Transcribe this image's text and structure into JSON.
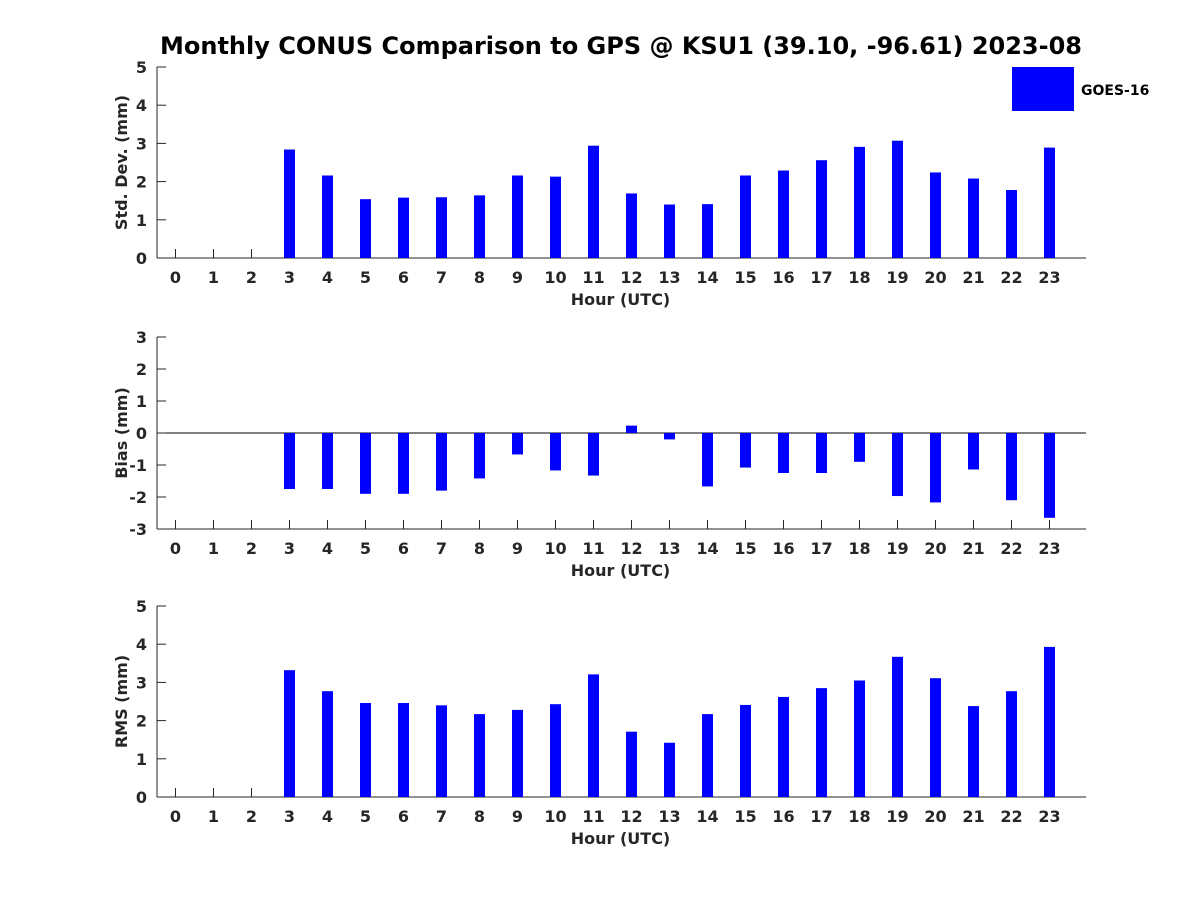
{
  "title": "Monthly CONUS Comparison to GPS @ KSU1 (39.10, -96.61) 2023-08",
  "legend": {
    "label": "GOES-16",
    "color": "#0000ff",
    "position": "top-right"
  },
  "chart_data": [
    {
      "type": "bar",
      "ylabel": "Std. Dev. (mm)",
      "xlabel": "Hour (UTC)",
      "ylim": [
        0,
        5
      ],
      "yticks": [
        "0",
        "1",
        "2",
        "3",
        "4",
        "5"
      ],
      "categories": [
        "0",
        "1",
        "2",
        "3",
        "4",
        "5",
        "6",
        "7",
        "8",
        "9",
        "10",
        "11",
        "12",
        "13",
        "14",
        "15",
        "16",
        "17",
        "18",
        "19",
        "20",
        "21",
        "22",
        "23"
      ],
      "series": [
        {
          "name": "GOES-16",
          "color": "#0000ff",
          "values": [
            null,
            null,
            null,
            2.84,
            2.16,
            1.54,
            1.58,
            1.59,
            1.64,
            2.16,
            2.13,
            2.94,
            1.69,
            1.4,
            1.41,
            2.16,
            2.29,
            2.56,
            2.91,
            3.07,
            2.24,
            2.08,
            1.78,
            2.89
          ]
        }
      ],
      "grid": false
    },
    {
      "type": "bar",
      "ylabel": "Bias (mm)",
      "xlabel": "Hour (UTC)",
      "ylim": [
        -3,
        3
      ],
      "yticks": [
        "-3",
        "-2",
        "-1",
        "0",
        "1",
        "2",
        "3"
      ],
      "categories": [
        "0",
        "1",
        "2",
        "3",
        "4",
        "5",
        "6",
        "7",
        "8",
        "9",
        "10",
        "11",
        "12",
        "13",
        "14",
        "15",
        "16",
        "17",
        "18",
        "19",
        "20",
        "21",
        "22",
        "23"
      ],
      "series": [
        {
          "name": "GOES-16",
          "color": "#0000ff",
          "values": [
            null,
            null,
            null,
            -1.75,
            -1.75,
            -1.9,
            -1.9,
            -1.8,
            -1.42,
            -0.67,
            -1.17,
            -1.33,
            0.23,
            -0.2,
            -1.67,
            -1.08,
            -1.25,
            -1.25,
            -0.9,
            -1.97,
            -2.17,
            -1.14,
            -2.1,
            -2.65
          ]
        }
      ],
      "zero_line": true,
      "grid": false
    },
    {
      "type": "bar",
      "ylabel": "RMS (mm)",
      "xlabel": "Hour (UTC)",
      "ylim": [
        0,
        5
      ],
      "yticks": [
        "0",
        "1",
        "2",
        "3",
        "4",
        "5"
      ],
      "categories": [
        "0",
        "1",
        "2",
        "3",
        "4",
        "5",
        "6",
        "7",
        "8",
        "9",
        "10",
        "11",
        "12",
        "13",
        "14",
        "15",
        "16",
        "17",
        "18",
        "19",
        "20",
        "21",
        "22",
        "23"
      ],
      "series": [
        {
          "name": "GOES-16",
          "color": "#0000ff",
          "values": [
            null,
            null,
            null,
            3.32,
            2.77,
            2.46,
            2.46,
            2.4,
            2.17,
            2.28,
            2.43,
            3.21,
            1.71,
            1.42,
            2.17,
            2.41,
            2.62,
            2.85,
            3.05,
            3.67,
            3.11,
            2.38,
            2.77,
            3.93
          ]
        }
      ],
      "grid": false
    }
  ]
}
